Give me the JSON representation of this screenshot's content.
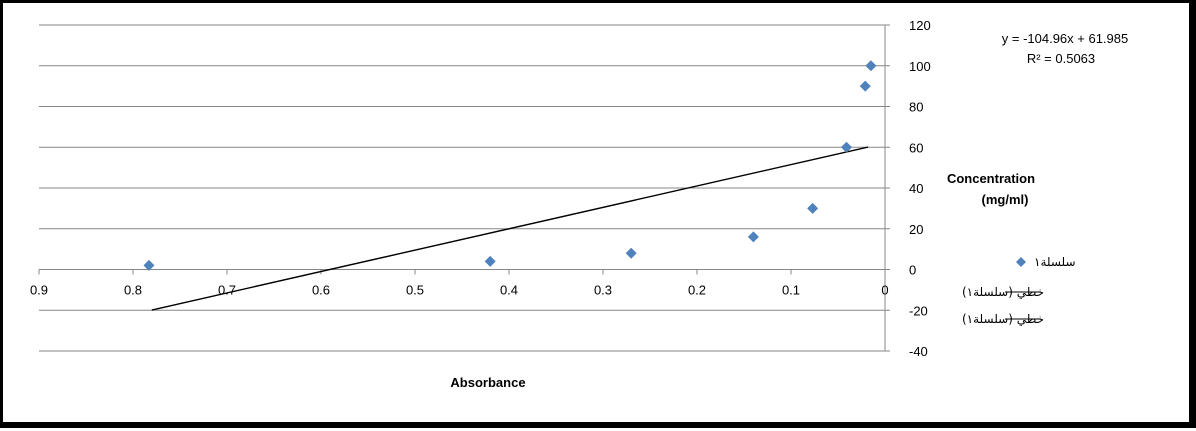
{
  "chart_data": {
    "type": "scatter",
    "x_axis": {
      "label": "Absorbance",
      "range": [
        0,
        0.9
      ],
      "reversed": true,
      "ticks": [
        "0",
        "0.1",
        "0.2",
        "0.3",
        "0.4",
        "0.5",
        "0.6",
        "0.7",
        "0.8",
        "0.9"
      ]
    },
    "y_axis": {
      "label_line1": "Concentration",
      "label_line2": "(mg/ml)",
      "range": [
        -40,
        120
      ],
      "position": "right",
      "ticks": [
        "-40",
        "-20",
        "0",
        "20",
        "40",
        "60",
        "80",
        "100",
        "120"
      ]
    },
    "grid": "horizontal",
    "series": [
      {
        "name": "سلسلة١",
        "kind": "scatter",
        "marker": "diamond",
        "color": "#4F81BD",
        "points": [
          {
            "x": 0.783,
            "y": 2
          },
          {
            "x": 0.42,
            "y": 4
          },
          {
            "x": 0.27,
            "y": 8
          },
          {
            "x": 0.14,
            "y": 16
          },
          {
            "x": 0.077,
            "y": 30
          },
          {
            "x": 0.041,
            "y": 60
          },
          {
            "x": 0.021,
            "y": 90
          },
          {
            "x": 0.015,
            "y": 100
          }
        ]
      },
      {
        "name": "خطي (سلسلة١)",
        "kind": "trendline",
        "color": "#000000",
        "x_start": 0.78,
        "x_end": 0.018
      },
      {
        "name": "خطي (سلسلة١)",
        "kind": "trendline",
        "color": "#000000"
      }
    ],
    "trendline": {
      "slope": -104.96,
      "intercept": 61.985,
      "equation": "y = -104.96x + 61.985",
      "r_squared": "R² = 0.5063"
    },
    "legend_position": "right"
  }
}
